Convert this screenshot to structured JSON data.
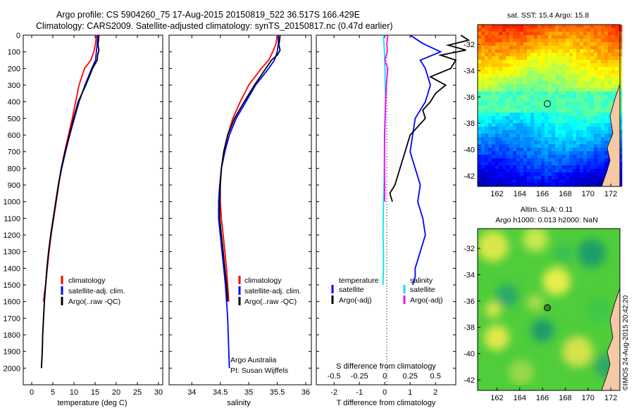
{
  "header": {
    "title_line1": "Argo profile: CS 5904260_75 17-Aug-2015 20150819_522 36.517S 166.429E",
    "title_line2": "Climatology: CARS2009. Satellite-adjusted climatology: synTS_20150817.nc (0.47d earlier)"
  },
  "colors": {
    "climatology": "#ff0000",
    "satellite": "#0000ff",
    "argo": "#000000",
    "salinity_satellite": "#00e5ee",
    "salinity_argo": "#ff00ff"
  },
  "panels": {
    "temperature": {
      "xlabel": "temperature (deg C)",
      "legend": [
        "climatology",
        "satellite-adj. clim.",
        "Argo(..raw -QC)"
      ]
    },
    "salinity": {
      "xlabel": "salinity",
      "legend": [
        "climatology",
        "satellite-adj. clim.",
        "Argo(..raw -QC)"
      ],
      "credit_line1": "Argo Australia",
      "credit_line2": "PI: Susan Wijffels"
    },
    "difference": {
      "xlabel": "T difference from climatology",
      "top_xlabel": "S difference from climatology",
      "legend_temperature_title": "temperature",
      "legend_salinity_title": "salinity",
      "legend_temperature": [
        "satellite",
        "Argo(-adj)"
      ],
      "legend_salinity": [
        "satellite",
        "Argo(-adj)"
      ]
    },
    "sst_map": {
      "title": "sat. SST: 15.4  Argo: 15.8"
    },
    "sla_map": {
      "title_line1": "Altim. SLA: 0.11",
      "title_line2": "Argo h1000: 0.013 h2000: NaN"
    }
  },
  "footer_vertical": "©IMOS 24-Aug-2015 20:42:20",
  "chart_data": [
    {
      "type": "line",
      "title": "",
      "xlabel": "temperature (deg C)",
      "ylabel": "",
      "xlim": [
        -2,
        31
      ],
      "ylim": [
        2100,
        0
      ],
      "xticks": [
        0,
        5,
        10,
        15,
        20,
        25,
        30
      ],
      "yticks": [
        0,
        100,
        200,
        300,
        400,
        500,
        600,
        700,
        800,
        900,
        1000,
        1100,
        1200,
        1300,
        1400,
        1500,
        1600,
        1700,
        1800,
        1900,
        2000
      ],
      "series": [
        {
          "name": "climatology",
          "color": "#ff0000",
          "x": [
            15.3,
            15.1,
            14.7,
            14.0,
            12.5,
            11.2,
            10.4,
            9.6,
            8.7,
            7.8,
            7.0,
            6.4,
            5.8,
            5.2,
            4.6,
            4.1,
            3.7,
            3.3,
            3.0,
            2.8
          ],
          "y": [
            0,
            50,
            100,
            150,
            200,
            300,
            400,
            500,
            600,
            700,
            800,
            900,
            1000,
            1100,
            1200,
            1300,
            1400,
            1500,
            1550,
            1600
          ]
        },
        {
          "name": "satellite-adj. clim.",
          "color": "#0000ff",
          "x": [
            15.6,
            15.5,
            15.3,
            15.1,
            14.2,
            12.6,
            11.2,
            10.1,
            9.0,
            8.0,
            7.1,
            6.3,
            5.7,
            5.1,
            4.5,
            4.0,
            3.6,
            3.3,
            3.0,
            2.8,
            2.6,
            2.5,
            2.4,
            2.3
          ],
          "y": [
            0,
            50,
            100,
            150,
            200,
            300,
            400,
            500,
            600,
            700,
            800,
            900,
            1000,
            1100,
            1200,
            1300,
            1400,
            1500,
            1600,
            1700,
            1800,
            1900,
            1950,
            2000
          ]
        },
        {
          "name": "Argo(..raw -QC)",
          "color": "#000000",
          "x": [
            15.9,
            15.8,
            15.7,
            15.9,
            15.6,
            15.5,
            14.4,
            12.8,
            11.0,
            9.9,
            8.9,
            7.9,
            7.0,
            6.3,
            5.7,
            5.1,
            4.5,
            4.0,
            3.6,
            3.3,
            3.0,
            2.8,
            2.6,
            2.5,
            2.4,
            2.3
          ],
          "y": [
            0,
            30,
            60,
            90,
            120,
            150,
            200,
            300,
            400,
            500,
            600,
            700,
            800,
            900,
            1000,
            1100,
            1200,
            1300,
            1400,
            1500,
            1600,
            1700,
            1800,
            1900,
            1950,
            2000
          ]
        }
      ]
    },
    {
      "type": "line",
      "title": "",
      "xlabel": "salinity",
      "ylabel": "",
      "xlim": [
        33.6,
        36.1
      ],
      "ylim": [
        2100,
        0
      ],
      "xticks": [
        34,
        34.5,
        35,
        35.5,
        36
      ],
      "series": [
        {
          "name": "climatology",
          "color": "#ff0000",
          "x": [
            35.5,
            35.48,
            35.42,
            35.35,
            35.22,
            35.0,
            34.85,
            34.72,
            34.63,
            34.56,
            34.52,
            34.5,
            34.5,
            34.52,
            34.55,
            34.58,
            34.61,
            34.63,
            34.65
          ],
          "y": [
            0,
            50,
            100,
            150,
            200,
            300,
            400,
            500,
            600,
            700,
            800,
            900,
            1000,
            1100,
            1200,
            1300,
            1400,
            1500,
            1600
          ]
        },
        {
          "name": "satellite-adj. clim.",
          "color": "#0000ff",
          "x": [
            35.52,
            35.52,
            35.5,
            35.45,
            35.35,
            35.12,
            34.95,
            34.78,
            34.66,
            34.58,
            34.52,
            34.49,
            34.47,
            34.47,
            34.5,
            34.53,
            34.56,
            34.59,
            34.61,
            34.63,
            34.64,
            34.65,
            34.66
          ],
          "y": [
            0,
            50,
            100,
            150,
            200,
            300,
            400,
            500,
            600,
            700,
            800,
            900,
            1000,
            1100,
            1200,
            1300,
            1400,
            1500,
            1600,
            1700,
            1800,
            1900,
            2000
          ]
        },
        {
          "name": "Argo(..raw -QC)",
          "color": "#000000",
          "x": [
            35.55,
            35.54,
            35.53,
            35.55,
            35.5,
            35.4,
            35.3,
            35.1,
            34.92,
            34.75,
            34.63,
            34.56,
            34.52,
            34.5,
            34.49,
            34.49,
            34.52,
            34.55,
            34.58,
            34.61,
            34.63
          ],
          "y": [
            0,
            30,
            60,
            90,
            120,
            150,
            200,
            300,
            400,
            500,
            600,
            700,
            800,
            900,
            1000,
            1100,
            1200,
            1300,
            1400,
            1500,
            1600
          ]
        }
      ]
    },
    {
      "type": "line",
      "title": "",
      "xlabel": "T difference from climatology",
      "top_xlabel": "S difference from climatology",
      "xlim": [
        -2.7,
        2.8
      ],
      "ylim": [
        2100,
        0
      ],
      "xticks": [
        -2,
        -1,
        0,
        1,
        2
      ],
      "top_xticks": [
        "-0.5",
        "-0.25",
        "0",
        "0.25",
        "0.5"
      ],
      "series": [
        {
          "name": "temperature satellite",
          "color": "#0000ff",
          "x": [
            1.0,
            1.5,
            2.2,
            1.4,
            1.6,
            1.8,
            1.6,
            1.2,
            1.1,
            1.0,
            1.2,
            1.4,
            1.3,
            1.5,
            1.6,
            1.4,
            1.3,
            1.2,
            1.2,
            1.1
          ],
          "y": [
            0,
            50,
            100,
            150,
            200,
            300,
            400,
            500,
            600,
            700,
            800,
            900,
            1000,
            1100,
            1200,
            1300,
            1350,
            1400,
            1450,
            1500
          ]
        },
        {
          "name": "temperature Argo(-adj)",
          "color": "#000000",
          "x": [
            3.0,
            3.3,
            2.5,
            3.2,
            2.2,
            2.8,
            2.6,
            1.8,
            2.4,
            2.0,
            1.8,
            1.5,
            1.6,
            1.3,
            1.0,
            0.8,
            0.6,
            0.5,
            0.4,
            0.2,
            0.3
          ],
          "y": [
            0,
            30,
            60,
            90,
            120,
            150,
            200,
            250,
            300,
            350,
            400,
            450,
            500,
            550,
            600,
            700,
            800,
            850,
            900,
            950,
            1000
          ]
        },
        {
          "name": "salinity satellite",
          "color": "#00e5ee",
          "x": [
            -0.05,
            -0.03,
            0.0,
            0.02,
            0.03,
            0.02,
            0.0,
            -0.01,
            -0.02,
            -0.03,
            -0.05,
            -0.06,
            -0.07,
            -0.06,
            -0.05,
            -0.05,
            -0.06,
            -0.07
          ],
          "y": [
            0,
            50,
            150,
            300,
            400,
            500,
            600,
            700,
            800,
            900,
            1000,
            1100,
            1200,
            1250,
            1300,
            1400,
            1450,
            1500
          ]
        },
        {
          "name": "salinity Argo(-adj)",
          "color": "#ff00ff",
          "x": [
            0.12,
            0.08,
            0.1,
            0.0,
            0.12,
            0.06,
            0.03,
            0.01,
            -0.01,
            -0.01,
            0.0
          ],
          "y": [
            0,
            50,
            100,
            150,
            200,
            300,
            400,
            500,
            600,
            800,
            1000
          ]
        }
      ]
    },
    {
      "type": "heatmap",
      "title": "sat. SST: 15.4  Argo: 15.8",
      "xticks": [
        162,
        164,
        166,
        168,
        170,
        172
      ],
      "yticks": [
        -32,
        -34,
        -36,
        -38,
        -40,
        -42
      ],
      "xlim": [
        160.3,
        172.8
      ],
      "ylim": [
        -42.8,
        -30.5
      ],
      "argo_position": [
        166.429,
        -36.517
      ]
    },
    {
      "type": "heatmap",
      "title": "Altim. SLA: 0.11",
      "subtitle": "Argo h1000: 0.013 h2000: NaN",
      "xticks": [
        162,
        164,
        166,
        168,
        170,
        172
      ],
      "yticks": [
        -32,
        -34,
        -36,
        -38,
        -40,
        -42
      ],
      "xlim": [
        160.3,
        172.8
      ],
      "ylim": [
        -42.8,
        -30.5
      ],
      "argo_position": [
        166.429,
        -36.517
      ]
    }
  ]
}
